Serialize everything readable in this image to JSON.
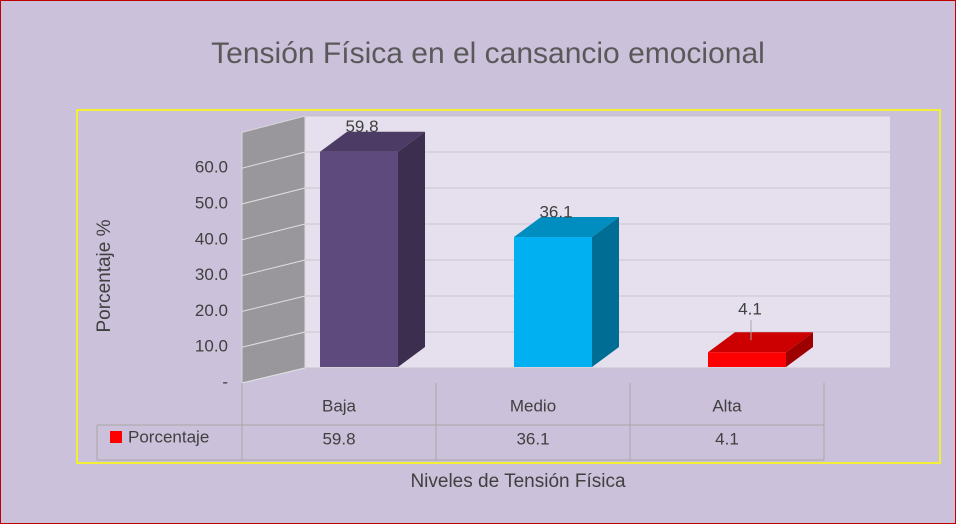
{
  "chart_data": {
    "type": "bar3d",
    "title": "Tensión Física en el cansancio emocional",
    "y_label": "Porcentaje %",
    "x_label": "Niveles de Tensión Física",
    "categories": [
      "Baja",
      "Medio",
      "Alta"
    ],
    "series": [
      {
        "name": "Porcentaje",
        "color": "#ff0000",
        "values": [
          59.8,
          36.1,
          4.1
        ]
      }
    ],
    "bar_colors": [
      "#5f4a7d",
      "#00b0f0",
      "#ff0000"
    ],
    "ylim": [
      0,
      70
    ],
    "yticks": [
      {
        "value": 0,
        "label": "-"
      },
      {
        "value": 10,
        "label": "10.0"
      },
      {
        "value": 20,
        "label": "20.0"
      },
      {
        "value": 30,
        "label": "30.0"
      },
      {
        "value": 40,
        "label": "40.0"
      },
      {
        "value": 50,
        "label": "50.0"
      },
      {
        "value": 60,
        "label": "60.0"
      }
    ],
    "grid": true,
    "data_table": true
  }
}
